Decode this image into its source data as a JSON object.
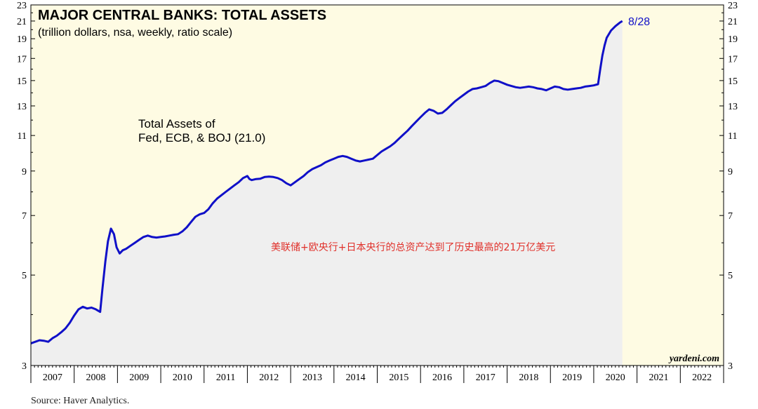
{
  "chart_data": {
    "type": "area",
    "title": "MAJOR CENTRAL BANKS: TOTAL ASSETS",
    "subtitle": "(trillion dollars, nsa, weekly, ratio scale)",
    "series_label_line1": "Total Assets of",
    "series_label_line2": "Fed, ECB, & BOJ (21.0)",
    "last_point_label": "8/28",
    "annotation_cn": "美联储+欧央行+日本央行的总资产达到了历史最高的21万亿美元",
    "watermark": "yardeni.com",
    "y_scale": "log",
    "ylim": [
      3,
      23
    ],
    "y_ticks": [
      3,
      5,
      7,
      9,
      11,
      13,
      15,
      17,
      19,
      21,
      23
    ],
    "xlim": [
      2007.0,
      2023.0
    ],
    "x_tick_labels": [
      "2007",
      "2008",
      "2009",
      "2010",
      "2011",
      "2012",
      "2013",
      "2014",
      "2015",
      "2016",
      "2017",
      "2018",
      "2019",
      "2020",
      "2021",
      "2022"
    ],
    "grid": false,
    "colors": {
      "line": "#1010c8",
      "fill": "#efefef",
      "plot_background": "#fefbe3",
      "annotation": "#e0302a",
      "axis": "#000000"
    },
    "series": [
      {
        "name": "Total Assets of Fed, ECB, & BOJ",
        "x": [
          2007.0,
          2007.1,
          2007.2,
          2007.3,
          2007.4,
          2007.5,
          2007.6,
          2007.7,
          2007.8,
          2007.9,
          2008.0,
          2008.1,
          2008.2,
          2008.3,
          2008.4,
          2008.5,
          2008.6,
          2008.65,
          2008.72,
          2008.78,
          2008.85,
          2008.92,
          2008.98,
          2009.05,
          2009.12,
          2009.2,
          2009.3,
          2009.4,
          2009.5,
          2009.6,
          2009.7,
          2009.8,
          2009.9,
          2010.0,
          2010.1,
          2010.2,
          2010.3,
          2010.4,
          2010.5,
          2010.6,
          2010.7,
          2010.8,
          2010.9,
          2011.0,
          2011.1,
          2011.2,
          2011.3,
          2011.4,
          2011.5,
          2011.6,
          2011.7,
          2011.8,
          2011.9,
          2012.0,
          2012.05,
          2012.1,
          2012.2,
          2012.3,
          2012.4,
          2012.5,
          2012.6,
          2012.7,
          2012.8,
          2012.9,
          2013.0,
          2013.1,
          2013.2,
          2013.3,
          2013.4,
          2013.5,
          2013.6,
          2013.7,
          2013.8,
          2013.9,
          2014.0,
          2014.1,
          2014.2,
          2014.3,
          2014.4,
          2014.5,
          2014.6,
          2014.7,
          2014.8,
          2014.9,
          2015.0,
          2015.1,
          2015.2,
          2015.3,
          2015.4,
          2015.5,
          2015.6,
          2015.7,
          2015.8,
          2015.9,
          2016.0,
          2016.1,
          2016.2,
          2016.3,
          2016.4,
          2016.5,
          2016.6,
          2016.7,
          2016.8,
          2016.9,
          2017.0,
          2017.1,
          2017.2,
          2017.3,
          2017.4,
          2017.5,
          2017.6,
          2017.7,
          2017.8,
          2017.9,
          2018.0,
          2018.1,
          2018.2,
          2018.3,
          2018.4,
          2018.5,
          2018.6,
          2018.7,
          2018.8,
          2018.9,
          2019.0,
          2019.1,
          2019.2,
          2019.3,
          2019.4,
          2019.5,
          2019.6,
          2019.7,
          2019.8,
          2019.9,
          2020.0,
          2020.1,
          2020.15,
          2020.2,
          2020.25,
          2020.3,
          2020.4,
          2020.5,
          2020.6,
          2020.66
        ],
        "values": [
          3.4,
          3.43,
          3.46,
          3.45,
          3.43,
          3.5,
          3.55,
          3.62,
          3.7,
          3.82,
          3.98,
          4.12,
          4.18,
          4.14,
          4.16,
          4.12,
          4.06,
          4.6,
          5.4,
          6.05,
          6.5,
          6.3,
          5.85,
          5.65,
          5.75,
          5.8,
          5.9,
          6.0,
          6.1,
          6.2,
          6.25,
          6.2,
          6.18,
          6.2,
          6.22,
          6.25,
          6.28,
          6.3,
          6.4,
          6.55,
          6.75,
          6.95,
          7.05,
          7.1,
          7.25,
          7.5,
          7.7,
          7.85,
          8.0,
          8.15,
          8.3,
          8.45,
          8.65,
          8.75,
          8.6,
          8.55,
          8.6,
          8.62,
          8.7,
          8.72,
          8.7,
          8.65,
          8.55,
          8.4,
          8.3,
          8.45,
          8.6,
          8.75,
          8.95,
          9.1,
          9.2,
          9.3,
          9.45,
          9.55,
          9.65,
          9.75,
          9.8,
          9.75,
          9.65,
          9.55,
          9.5,
          9.55,
          9.6,
          9.65,
          9.85,
          10.05,
          10.2,
          10.35,
          10.55,
          10.8,
          11.05,
          11.3,
          11.6,
          11.9,
          12.2,
          12.5,
          12.75,
          12.65,
          12.45,
          12.5,
          12.75,
          13.05,
          13.35,
          13.6,
          13.85,
          14.1,
          14.3,
          14.35,
          14.45,
          14.55,
          14.8,
          15.0,
          14.95,
          14.8,
          14.65,
          14.55,
          14.45,
          14.4,
          14.45,
          14.5,
          14.45,
          14.35,
          14.3,
          14.2,
          14.35,
          14.5,
          14.45,
          14.3,
          14.25,
          14.3,
          14.35,
          14.4,
          14.5,
          14.55,
          14.6,
          14.7,
          16.0,
          17.3,
          18.3,
          19.1,
          19.9,
          20.4,
          20.8,
          21.0
        ]
      }
    ]
  },
  "footer": {
    "source": "Source: Haver Analytics."
  }
}
